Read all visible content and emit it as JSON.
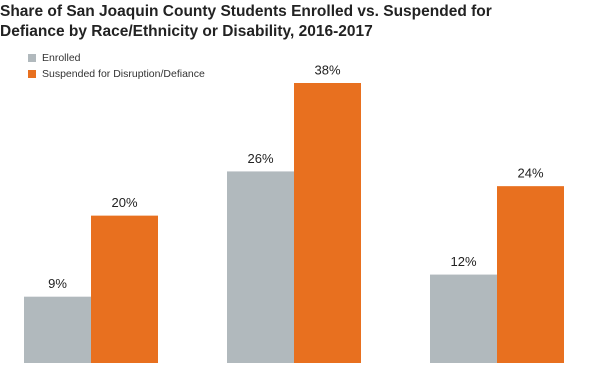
{
  "chart_data": {
    "type": "bar",
    "title": "Share of San Joaquin County Students Enrolled vs. Suspended for Defiance by Race/Ethnicity or Disability, 2016-2017",
    "categories": [
      null,
      null,
      null
    ],
    "series": [
      {
        "name": "Enrolled",
        "color": "#b1b9bd",
        "values": [
          9,
          26,
          12
        ],
        "value_labels": [
          "9%",
          "26%",
          "12%"
        ]
      },
      {
        "name": "Suspended for Disruption/Defiance",
        "color": "#e8701f",
        "values": [
          20,
          38,
          24
        ],
        "value_labels": [
          "20%",
          "38%",
          "24%"
        ]
      }
    ]
  }
}
